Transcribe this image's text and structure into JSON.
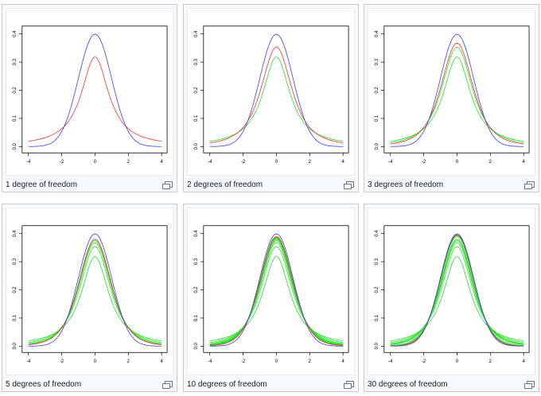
{
  "gallery": {
    "items": [
      {
        "caption": "1 degree of freedom",
        "dfs": [
          1
        ]
      },
      {
        "caption": "2 degrees of freedom",
        "dfs": [
          1,
          2
        ]
      },
      {
        "caption": "3 degrees of freedom",
        "dfs": [
          1,
          2,
          3
        ]
      },
      {
        "caption": "5 degrees of freedom",
        "dfs": [
          1,
          2,
          3,
          4,
          5
        ]
      },
      {
        "caption": "10 degrees of freedom",
        "dfs": [
          1,
          2,
          3,
          4,
          5,
          6,
          7,
          8,
          9,
          10
        ]
      },
      {
        "caption": "30 degrees of freedom",
        "dfs": [
          1,
          2,
          3,
          4,
          5,
          10,
          15,
          20,
          25,
          30
        ]
      }
    ]
  },
  "chart_data": {
    "type": "line",
    "x_ticks": [
      "-4",
      "-2",
      "0",
      "2",
      "4"
    ],
    "y_ticks": [
      "0.0",
      "0.1",
      "0.2",
      "0.3",
      "0.4"
    ],
    "xlim": [
      -4,
      4
    ],
    "ylim": [
      0,
      0.4
    ],
    "colors": {
      "normal": "#3b3bff",
      "latest_t": "#ff2a2a",
      "earlier_t": "#22e022"
    }
  }
}
